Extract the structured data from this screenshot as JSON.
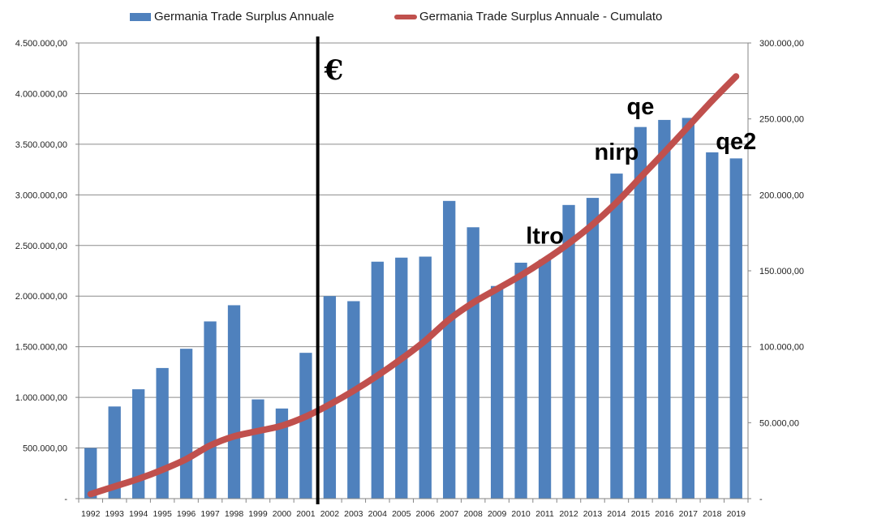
{
  "colors": {
    "bar": "#4f81bd",
    "line": "#c0504d",
    "grid": "#8c8c8c",
    "axis": "#868686",
    "marker": "#000000"
  },
  "chart_data": {
    "type": "bar",
    "categories": [
      "1992",
      "1993",
      "1994",
      "1995",
      "1996",
      "1997",
      "1998",
      "1999",
      "2000",
      "2001",
      "2002",
      "2003",
      "2004",
      "2005",
      "2006",
      "2007",
      "2008",
      "2009",
      "2010",
      "2011",
      "2012",
      "2013",
      "2014",
      "2015",
      "2016",
      "2017",
      "2018",
      "2019"
    ],
    "series": [
      {
        "name": "Germania Trade Surplus Annuale",
        "type": "bar",
        "axis": "left",
        "values": [
          500000,
          910000,
          1080000,
          1290000,
          1480000,
          1750000,
          1910000,
          980000,
          890000,
          1440000,
          2000000,
          1950000,
          2340000,
          2380000,
          2390000,
          2940000,
          2680000,
          2100000,
          2330000,
          2360000,
          2900000,
          2970000,
          3210000,
          3670000,
          3740000,
          3760000,
          3420000,
          3360000
        ]
      },
      {
        "name": "Germania Trade Surplus Annuale - Cumulato",
        "type": "line",
        "axis": "right",
        "values": [
          3000,
          8000,
          13000,
          19000,
          26000,
          35000,
          41000,
          44500,
          48000,
          54000,
          62000,
          71000,
          81000,
          92000,
          104000,
          118000,
          129000,
          138000,
          147000,
          157000,
          168000,
          180500,
          195000,
          211500,
          228000,
          245000,
          262000,
          278000
        ]
      }
    ],
    "y_left": {
      "min": 0,
      "max": 4500000,
      "step": 500000,
      "tick_labels": [
        "-",
        "500.000,00",
        "1.000.000,00",
        "1.500.000,00",
        "2.000.000,00",
        "2.500.000,00",
        "3.000.000,00",
        "3.500.000,00",
        "4.000.000,00",
        "4.500.000,00"
      ]
    },
    "y_right": {
      "min": 0,
      "max": 300000,
      "step": 50000,
      "tick_labels": [
        "-",
        "50.000,00",
        "100.000,00",
        "150.000,00",
        "200.000,00",
        "250.000,00",
        "300.000,00"
      ]
    },
    "vertical_marker": {
      "between": [
        "2001",
        "2002"
      ],
      "label": "€"
    },
    "annotations": [
      {
        "text": "ltro",
        "year": "2011",
        "value_right": 168000
      },
      {
        "text": "nirp",
        "year": "2014",
        "value_right": 223000
      },
      {
        "text": "qe",
        "year": "2015",
        "value_right": 253000
      },
      {
        "text": "qe2",
        "year": "2019",
        "value_right": 230000
      }
    ],
    "grid": true,
    "legend_position": "top"
  }
}
